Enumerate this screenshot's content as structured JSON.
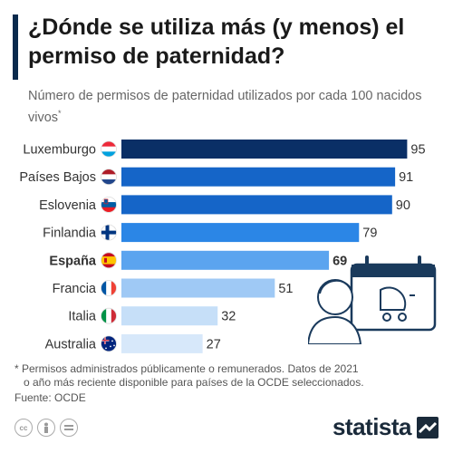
{
  "header": {
    "title": "¿Dónde se utiliza más (y menos) el permiso de paternidad?",
    "subtitle": "Número de permisos de paternidad utilizados por cada 100 nacidos vivos",
    "subtitle_mark": "*"
  },
  "chart_data": {
    "type": "bar",
    "orientation": "horizontal",
    "title": "¿Dónde se utiliza más (y menos) el permiso de paternidad?",
    "categories": [
      "Luxemburgo",
      "Países Bajos",
      "Eslovenia",
      "Finlandia",
      "España",
      "Francia",
      "Italia",
      "Australia"
    ],
    "values": [
      95,
      91,
      90,
      79,
      69,
      51,
      32,
      27
    ],
    "highlight": "España",
    "bar_colors": [
      "#0a2f66",
      "#1565c8",
      "#1565c8",
      "#2b86e6",
      "#5ba4ef",
      "#9fc9f5",
      "#c6dff8",
      "#d7e8fa"
    ],
    "flags": [
      "luxembourg-flag-icon",
      "netherlands-flag-icon",
      "slovenia-flag-icon",
      "finland-flag-icon",
      "spain-flag-icon",
      "france-flag-icon",
      "italy-flag-icon",
      "australia-flag-icon"
    ],
    "xlim": [
      0,
      100
    ],
    "grid": false,
    "legend": "none"
  },
  "footnote": {
    "line1": "* Permisos administrados públicamente o remunerados. Datos de 2021",
    "line2": "o año más reciente disponible para países de la OCDE seleccionados.",
    "source": "Fuente: OCDE"
  },
  "brand": {
    "name": "statista"
  },
  "colors": {
    "accent": "#0a2a4d",
    "text": "#333333"
  },
  "icons": [
    "creative-commons-icon",
    "attribution-icon",
    "no-derivatives-icon",
    "statista-logo-icon",
    "calendar-icon",
    "baby-carriage-icon",
    "father-icon"
  ]
}
